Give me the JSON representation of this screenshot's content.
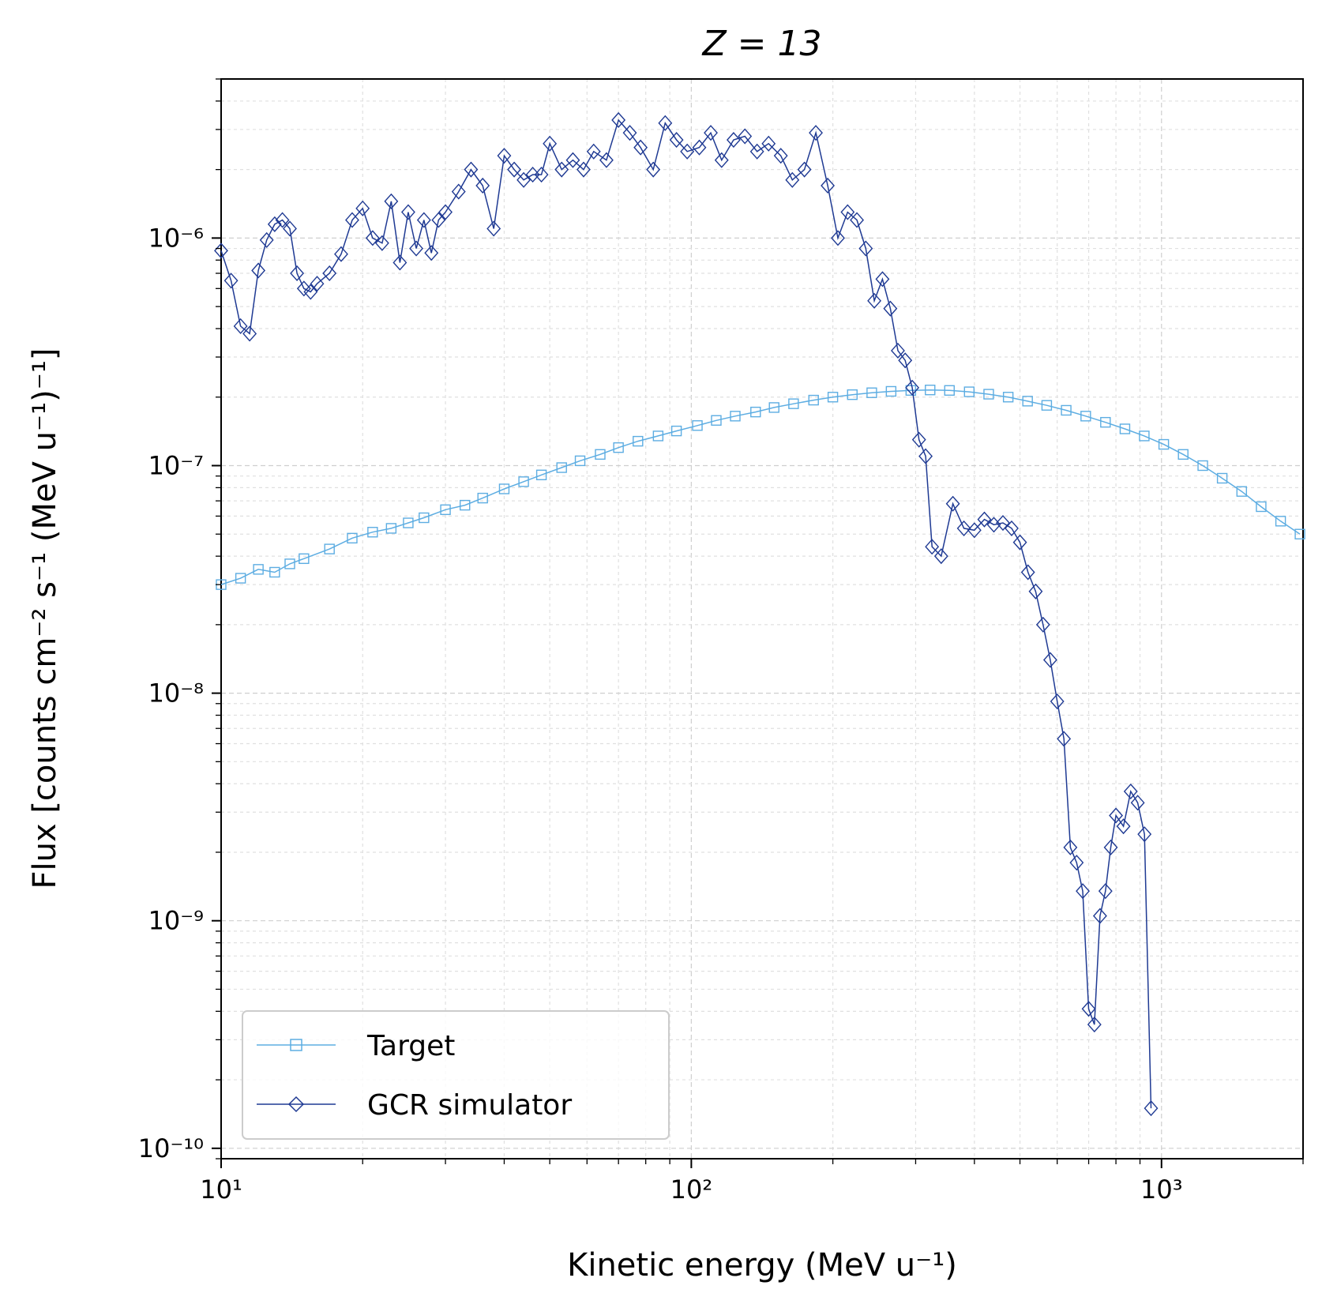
{
  "chart_data": {
    "type": "line",
    "title": "Z = 13",
    "xlabel": "Kinetic energy (MeV u⁻¹)",
    "ylabel": "Flux [counts cm⁻² s⁻¹ (MeV u⁻¹)⁻¹]",
    "xscale": "log",
    "yscale": "log",
    "xlim": [
      10,
      2000
    ],
    "ylim": [
      9e-11,
      5e-06
    ],
    "grid": true,
    "legend_position": "lower-left",
    "x_ticks": [
      {
        "value": 10,
        "label": "10¹"
      },
      {
        "value": 100,
        "label": "10²"
      },
      {
        "value": 1000,
        "label": "10³"
      }
    ],
    "y_ticks": [
      {
        "value": 1e-10,
        "label": "10⁻¹⁰"
      },
      {
        "value": 1e-09,
        "label": "10⁻⁹"
      },
      {
        "value": 1e-08,
        "label": "10⁻⁸"
      },
      {
        "value": 1e-07,
        "label": "10⁻⁷"
      },
      {
        "value": 1e-06,
        "label": "10⁻⁶"
      }
    ],
    "series": [
      {
        "name": "Target",
        "color": "#5dade2",
        "marker": "square",
        "x": [
          10,
          11,
          12,
          13,
          14,
          15,
          17,
          19,
          21,
          23,
          25,
          27,
          30,
          33,
          36,
          40,
          44,
          48,
          53,
          58,
          64,
          70,
          77,
          85,
          93,
          103,
          113,
          124,
          137,
          150,
          165,
          182,
          200,
          220,
          242,
          266,
          293,
          322,
          354,
          390,
          429,
          472,
          519,
          570,
          627,
          690,
          760,
          836,
          919,
          1011,
          1112,
          1224,
          1346,
          1481,
          1629,
          1792,
          1970
        ],
        "values": [
          3e-08,
          3.2e-08,
          3.5e-08,
          3.4e-08,
          3.7e-08,
          3.9e-08,
          4.3e-08,
          4.8e-08,
          5.1e-08,
          5.3e-08,
          5.6e-08,
          5.9e-08,
          6.4e-08,
          6.7e-08,
          7.2e-08,
          7.9e-08,
          8.5e-08,
          9.1e-08,
          9.8e-08,
          1.05e-07,
          1.12e-07,
          1.2e-07,
          1.28e-07,
          1.35e-07,
          1.42e-07,
          1.5e-07,
          1.58e-07,
          1.65e-07,
          1.72e-07,
          1.8e-07,
          1.87e-07,
          1.94e-07,
          2e-07,
          2.05e-07,
          2.09e-07,
          2.12e-07,
          2.14e-07,
          2.15e-07,
          2.14e-07,
          2.11e-07,
          2.06e-07,
          2e-07,
          1.92e-07,
          1.84e-07,
          1.75e-07,
          1.65e-07,
          1.55e-07,
          1.45e-07,
          1.35e-07,
          1.24e-07,
          1.12e-07,
          1e-07,
          8.8e-08,
          7.7e-08,
          6.6e-08,
          5.7e-08,
          5e-08
        ]
      },
      {
        "name": "GCR simulator",
        "color": "#1f3a93",
        "marker": "diamond",
        "x": [
          10,
          10.5,
          11,
          11.5,
          12,
          12.5,
          13,
          13.5,
          14,
          14.5,
          15,
          15.5,
          16,
          17,
          18,
          19,
          20,
          21,
          22,
          23,
          24,
          25,
          26,
          27,
          28,
          29,
          30,
          32,
          34,
          36,
          38,
          40,
          42,
          44,
          46,
          48,
          50,
          53,
          56,
          59,
          62,
          66,
          70,
          74,
          78,
          83,
          88,
          93,
          98,
          104,
          110,
          116,
          123,
          130,
          138,
          146,
          155,
          164,
          174,
          184,
          195,
          205,
          215,
          225,
          235,
          245,
          255,
          265,
          275,
          285,
          295,
          305,
          315,
          325,
          340,
          360,
          380,
          400,
          420,
          440,
          460,
          480,
          500,
          520,
          540,
          560,
          580,
          600,
          620,
          640,
          660,
          680,
          700,
          720,
          740,
          760,
          780,
          800,
          830,
          860,
          890,
          920,
          950
        ],
        "values": [
          8.8e-07,
          6.5e-07,
          4.1e-07,
          3.8e-07,
          7.2e-07,
          9.8e-07,
          1.15e-06,
          1.2e-06,
          1.1e-06,
          7e-07,
          6e-07,
          5.8e-07,
          6.3e-07,
          7e-07,
          8.5e-07,
          1.2e-06,
          1.35e-06,
          1e-06,
          9.5e-07,
          1.45e-06,
          7.8e-07,
          1.3e-06,
          9e-07,
          1.2e-06,
          8.6e-07,
          1.2e-06,
          1.3e-06,
          1.6e-06,
          2e-06,
          1.7e-06,
          1.1e-06,
          2.3e-06,
          2e-06,
          1.8e-06,
          1.9e-06,
          1.9e-06,
          2.6e-06,
          2e-06,
          2.2e-06,
          2e-06,
          2.4e-06,
          2.2e-06,
          3.3e-06,
          2.9e-06,
          2.5e-06,
          2e-06,
          3.2e-06,
          2.7e-06,
          2.4e-06,
          2.5e-06,
          2.9e-06,
          2.2e-06,
          2.7e-06,
          2.8e-06,
          2.4e-06,
          2.6e-06,
          2.3e-06,
          1.8e-06,
          2e-06,
          2.9e-06,
          1.7e-06,
          1e-06,
          1.3e-06,
          1.2e-06,
          9e-07,
          5.3e-07,
          6.6e-07,
          4.9e-07,
          3.2e-07,
          2.9e-07,
          2.2e-07,
          1.3e-07,
          1.1e-07,
          4.4e-08,
          4e-08,
          6.8e-08,
          5.3e-08,
          5.2e-08,
          5.8e-08,
          5.5e-08,
          5.6e-08,
          5.3e-08,
          4.6e-08,
          3.4e-08,
          2.8e-08,
          2e-08,
          1.4e-08,
          9.2e-09,
          6.3e-09,
          2.1e-09,
          1.8e-09,
          1.35e-09,
          4.1e-10,
          3.5e-10,
          1.05e-09,
          1.35e-09,
          2.1e-09,
          2.9e-09,
          2.6e-09,
          3.7e-09,
          3.3e-09,
          2.4e-09,
          1.5e-10
        ]
      }
    ]
  }
}
